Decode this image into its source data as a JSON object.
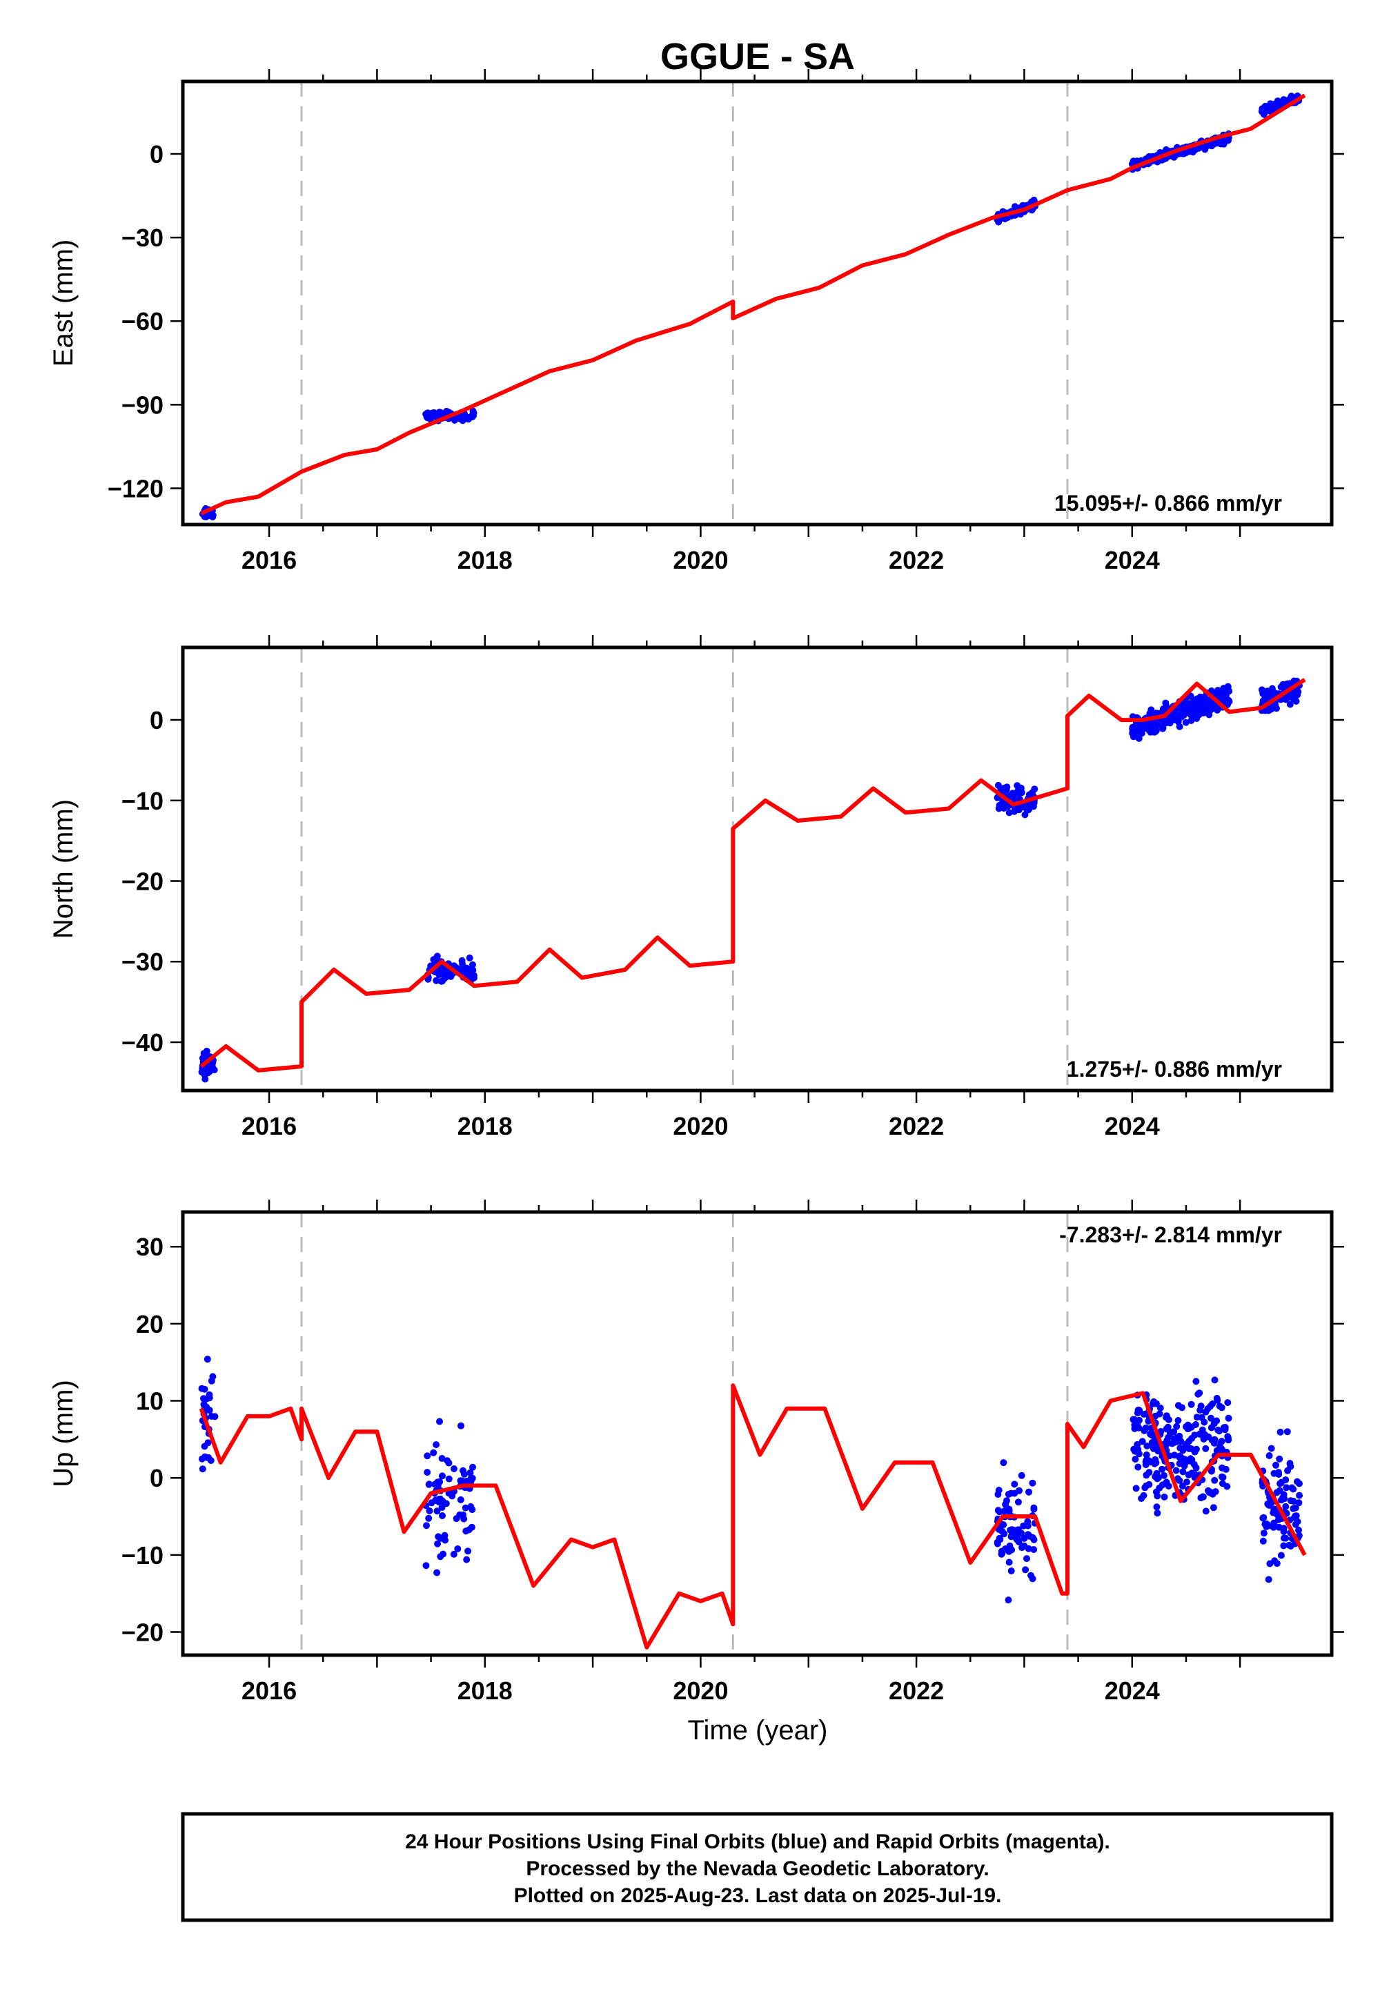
{
  "chart_data": {
    "type": "scatter",
    "title": "GGUE - SA",
    "xlabel": "Time (year)",
    "xlim": [
      2015.2,
      2025.85
    ],
    "x_ticks": [
      "2016",
      "2018",
      "2020",
      "2022",
      "2024"
    ],
    "event_lines": [
      2016.3,
      2020.3,
      2023.4
    ],
    "colors": {
      "observations": "#0000ff",
      "model": "#ff0000",
      "event": "#bbbbbb"
    },
    "panels": [
      {
        "name": "east",
        "ylabel": "East (mm)",
        "ylim": [
          -133,
          26
        ],
        "y_ticks": [
          "0",
          "−30",
          "−60",
          "−90",
          "−120"
        ],
        "y_tick_values": [
          0,
          -30,
          -60,
          -90,
          -120
        ],
        "rate_label": "15.095+/- 0.866 mm/yr",
        "rate_position": "bottom-right",
        "model": {
          "x": [
            2015.37,
            2015.6,
            2015.9,
            2016.3,
            2016.7,
            2017.0,
            2017.3,
            2017.8,
            2018.2,
            2018.6,
            2019.0,
            2019.4,
            2019.9,
            2020.3,
            2020.3,
            2020.7,
            2021.1,
            2021.5,
            2021.9,
            2022.3,
            2022.7,
            2023.0,
            2023.4,
            2023.8,
            2024.0,
            2024.4,
            2024.8,
            2025.1,
            2025.6
          ],
          "y": [
            -129,
            -125,
            -123,
            -114,
            -108,
            -106,
            -100,
            -92,
            -85,
            -78,
            -74,
            -67,
            -61,
            -53,
            -59,
            -52,
            -48,
            -40,
            -36,
            -29,
            -23,
            -20,
            -13,
            -9,
            -5,
            1,
            6,
            9,
            21
          ]
        },
        "clusters": [
          {
            "x_range": [
              2015.37,
              2015.5
            ],
            "center": [
              -129,
              -129
            ],
            "spread": 3,
            "count": 30
          },
          {
            "x_range": [
              2017.45,
              2017.9
            ],
            "center": [
              -94,
              -94
            ],
            "spread": 3,
            "count": 80
          },
          {
            "x_range": [
              2022.75,
              2023.1
            ],
            "center": [
              -23,
              -18
            ],
            "spread": 3,
            "count": 80
          },
          {
            "x_range": [
              2024.0,
              2024.9
            ],
            "center": [
              -4,
              6
            ],
            "spread": 3,
            "count": 260
          },
          {
            "x_range": [
              2025.2,
              2025.55
            ],
            "center": [
              15,
              20
            ],
            "spread": 3,
            "count": 100
          }
        ]
      },
      {
        "name": "north",
        "ylabel": "North (mm)",
        "ylim": [
          -46,
          9
        ],
        "y_ticks": [
          "0",
          "−10",
          "−20",
          "−30",
          "−40"
        ],
        "y_tick_values": [
          0,
          -10,
          -20,
          -30,
          -40
        ],
        "rate_label": "1.275+/- 0.886 mm/yr",
        "rate_position": "bottom-right",
        "model": {
          "x": [
            2015.37,
            2015.6,
            2015.9,
            2016.3,
            2016.3,
            2016.6,
            2016.9,
            2017.3,
            2017.6,
            2017.9,
            2018.3,
            2018.6,
            2018.9,
            2019.3,
            2019.6,
            2019.9,
            2020.3,
            2020.3,
            2020.6,
            2020.9,
            2021.3,
            2021.6,
            2021.9,
            2022.3,
            2022.6,
            2022.9,
            2023.4,
            2023.4,
            2023.6,
            2023.9,
            2024.1,
            2024.3,
            2024.6,
            2024.9,
            2025.2,
            2025.6
          ],
          "y": [
            -43,
            -40.5,
            -43.5,
            -43,
            -35,
            -31,
            -34,
            -33.5,
            -30,
            -33,
            -32.5,
            -28.5,
            -32,
            -31,
            -27,
            -30.5,
            -30,
            -13.5,
            -10,
            -12.5,
            -12,
            -8.5,
            -11.5,
            -11,
            -7.5,
            -10.5,
            -8.5,
            0.5,
            3,
            0,
            0,
            0.5,
            4.5,
            1,
            1.5,
            5
          ]
        },
        "clusters": [
          {
            "x_range": [
              2015.37,
              2015.5
            ],
            "center": [
              -43,
              -43
            ],
            "spread": 3,
            "count": 30
          },
          {
            "x_range": [
              2017.45,
              2017.9
            ],
            "center": [
              -31,
              -31
            ],
            "spread": 3,
            "count": 80
          },
          {
            "x_range": [
              2022.75,
              2023.1
            ],
            "center": [
              -10,
              -10
            ],
            "spread": 3,
            "count": 80
          },
          {
            "x_range": [
              2024.0,
              2024.9
            ],
            "center": [
              -1,
              3
            ],
            "spread": 3,
            "count": 260
          },
          {
            "x_range": [
              2025.2,
              2025.55
            ],
            "center": [
              2,
              4
            ],
            "spread": 3,
            "count": 100
          }
        ]
      },
      {
        "name": "up",
        "ylabel": "Up (mm)",
        "ylim": [
          -23,
          34.5
        ],
        "y_ticks": [
          "30",
          "20",
          "10",
          "0",
          "−10",
          "−20"
        ],
        "y_tick_values": [
          30,
          20,
          10,
          0,
          -10,
          -20
        ],
        "rate_label": "-7.283+/- 2.814 mm/yr",
        "rate_position": "top-right",
        "model": {
          "x": [
            2015.37,
            2015.55,
            2015.8,
            2016.0,
            2016.2,
            2016.3,
            2016.3,
            2016.55,
            2016.8,
            2017.0,
            2017.25,
            2017.5,
            2017.8,
            2018.1,
            2018.45,
            2018.8,
            2019.0,
            2019.2,
            2019.5,
            2019.8,
            2020.0,
            2020.2,
            2020.3,
            2020.3,
            2020.55,
            2020.8,
            2021.15,
            2021.5,
            2021.8,
            2022.15,
            2022.5,
            2022.8,
            2023.1,
            2023.35,
            2023.4,
            2023.4,
            2023.55,
            2023.8,
            2024.1,
            2024.45,
            2024.8,
            2025.1,
            2025.6
          ],
          "y": [
            9,
            2,
            8,
            8,
            9,
            5,
            9,
            0,
            6,
            6,
            -7,
            -2,
            -1,
            -1,
            -14,
            -8,
            -9,
            -8,
            -22,
            -15,
            -16,
            -15,
            -19,
            12,
            3,
            9,
            9,
            -4,
            2,
            2,
            -11,
            -5,
            -5,
            -15,
            -15,
            7,
            4,
            10,
            11,
            -3,
            3,
            3,
            -10
          ]
        },
        "clusters": [
          {
            "x_range": [
              2015.37,
              2015.5
            ],
            "center": [
              8,
              8
            ],
            "spread": 14,
            "count": 30
          },
          {
            "x_range": [
              2017.45,
              2017.9
            ],
            "center": [
              -3,
              -3
            ],
            "spread": 14,
            "count": 80
          },
          {
            "x_range": [
              2022.75,
              2023.1
            ],
            "center": [
              -7,
              -7
            ],
            "spread": 14,
            "count": 80
          },
          {
            "x_range": [
              2024.0,
              2024.9
            ],
            "center": [
              4,
              4
            ],
            "spread": 14,
            "count": 260
          },
          {
            "x_range": [
              2025.2,
              2025.55
            ],
            "center": [
              -4,
              -4
            ],
            "spread": 14,
            "count": 100
          }
        ]
      }
    ]
  },
  "footer": {
    "line1": "24 Hour Positions Using Final Orbits (blue) and Rapid Orbits (magenta).",
    "line2": "Processed by the Nevada Geodetic Laboratory.",
    "line3": "Plotted on 2025-Aug-23. Last data on 2025-Jul-19."
  }
}
